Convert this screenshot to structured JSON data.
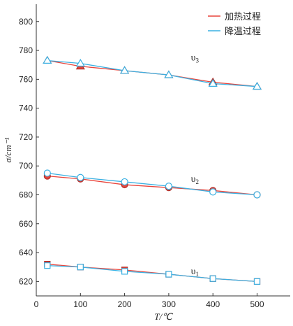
{
  "chart_data": {
    "type": "line",
    "xlabel": "T/℃",
    "ylabel": "σ/cm⁻¹",
    "xlim": [
      0,
      575
    ],
    "ylim": [
      610,
      812
    ],
    "xticks": [
      0,
      100,
      200,
      300,
      400,
      500
    ],
    "yticks": [
      620,
      640,
      660,
      680,
      700,
      720,
      740,
      760,
      780,
      800
    ],
    "grid": false,
    "legend_position": "top-right",
    "legend": [
      {
        "label": "加热过程",
        "color": "#e8453c"
      },
      {
        "label": "降温过程",
        "color": "#3ab0e2"
      }
    ],
    "annotations": [
      {
        "text": "υ3",
        "base": "υ",
        "sub": "3",
        "x": 350,
        "y": 773
      },
      {
        "text": "υ2",
        "base": "υ",
        "sub": "2",
        "x": 350,
        "y": 689
      },
      {
        "text": "υ1",
        "base": "υ",
        "sub": "1",
        "x": 350,
        "y": 625
      }
    ],
    "x": [
      25,
      100,
      200,
      300,
      400,
      500
    ],
    "series": [
      {
        "name": "加热过程",
        "group": "υ3",
        "marker": "triangle",
        "color": "#e8453c",
        "values": [
          773,
          769,
          766,
          763,
          758,
          755
        ]
      },
      {
        "name": "降温过程",
        "group": "υ3",
        "marker": "triangle",
        "color": "#3ab0e2",
        "values": [
          773,
          771,
          766,
          763,
          757,
          755
        ]
      },
      {
        "name": "加热过程",
        "group": "υ2",
        "marker": "circle",
        "color": "#e8453c",
        "values": [
          693,
          691,
          687,
          685,
          683,
          680
        ]
      },
      {
        "name": "降温过程",
        "group": "υ2",
        "marker": "circle",
        "color": "#3ab0e2",
        "values": [
          695,
          692,
          689,
          686,
          682,
          680
        ]
      },
      {
        "name": "加热过程",
        "group": "υ1",
        "marker": "square",
        "color": "#e8453c",
        "values": [
          632,
          630,
          628,
          625,
          622,
          620
        ]
      },
      {
        "name": "降温过程",
        "group": "υ1",
        "marker": "square",
        "color": "#3ab0e2",
        "values": [
          631,
          630,
          627,
          625,
          622,
          620
        ]
      }
    ]
  }
}
